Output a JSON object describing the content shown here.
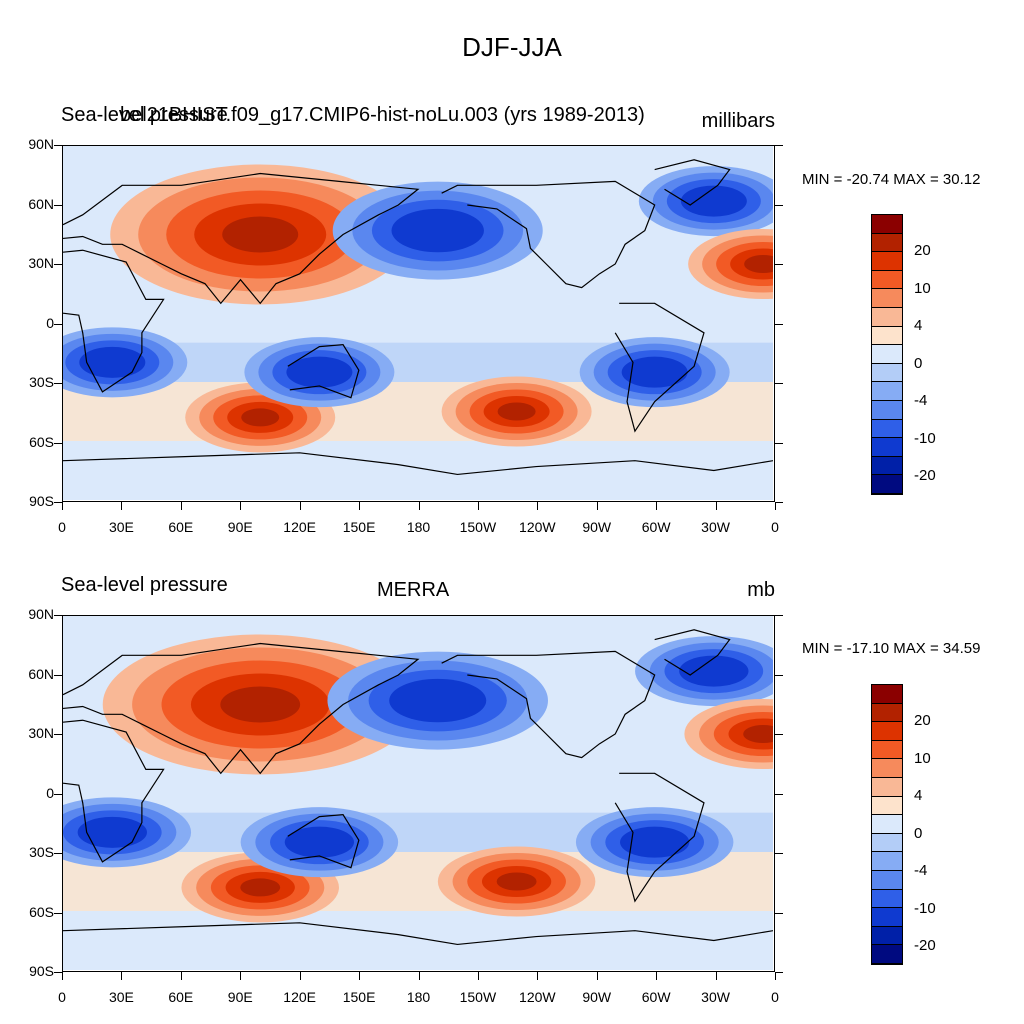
{
  "figure": {
    "title": "DJF-JJA"
  },
  "panels": [
    {
      "id": "model",
      "left_title": "Sea-level pressure",
      "center_title": "bel21BHIST.f09_g17.CMIP6-hist-noLu.003 (yrs 1989-2013)",
      "right_title": "millibars",
      "min_max_label": "MIN = -20.74 MAX =  30.12"
    },
    {
      "id": "obs",
      "left_title": "Sea-level pressure",
      "center_title": "MERRA",
      "right_title": "mb",
      "min_max_label": "MIN = -17.10 MAX =  34.59"
    }
  ],
  "axes": {
    "lat_labels": [
      "90N",
      "60N",
      "30N",
      "0",
      "30S",
      "60S",
      "90S"
    ],
    "lon_labels": [
      "0",
      "30E",
      "60E",
      "90E",
      "120E",
      "150E",
      "180",
      "150W",
      "120W",
      "90W",
      "60W",
      "30W",
      "0"
    ]
  },
  "colorbar": {
    "labels": [
      "20",
      "10",
      "4",
      "0",
      "-4",
      "-10",
      "-20"
    ],
    "colors": [
      "#8b0000",
      "#b22200",
      "#dd3300",
      "#f25a25",
      "#f68a5c",
      "#f9b896",
      "#fde3cc",
      "#dbe9fb",
      "#b3cdf7",
      "#86acf4",
      "#5a87ef",
      "#2f5fe8",
      "#0f3ad0",
      "#0020a8",
      "#000a80"
    ]
  },
  "map_features": [
    {
      "name": "siberian-high",
      "lon": 100,
      "lat": 45,
      "category": "positive"
    },
    {
      "name": "aleutian-low",
      "lon": 190,
      "lat": 47,
      "category": "negative"
    },
    {
      "name": "icelandic-low",
      "lon": 330,
      "lat": 62,
      "category": "negative"
    },
    {
      "name": "azores-high-edge",
      "lon": 355,
      "lat": 30,
      "category": "positive"
    },
    {
      "name": "south-indian-ocean-high",
      "lon": 100,
      "lat": -48,
      "category": "positive"
    },
    {
      "name": "south-pacific-high",
      "lon": 230,
      "lat": -45,
      "category": "positive"
    },
    {
      "name": "australia-low",
      "lon": 130,
      "lat": -25,
      "category": "negative"
    },
    {
      "name": "south-america-low",
      "lon": 300,
      "lat": -25,
      "category": "negative"
    },
    {
      "name": "southern-africa-low",
      "lon": 25,
      "lat": -20,
      "category": "negative"
    }
  ]
}
